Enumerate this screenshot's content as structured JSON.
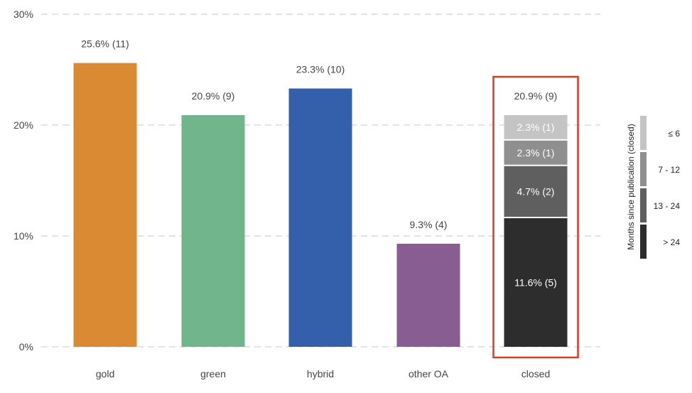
{
  "chart_data": {
    "type": "bar",
    "title": "",
    "xlabel": "",
    "ylabel": "",
    "ylim": [
      0,
      30
    ],
    "y_ticks": [
      0,
      10,
      20,
      30
    ],
    "y_tick_labels": [
      "0%",
      "10%",
      "20%",
      "30%"
    ],
    "grid": "horizontal dashed",
    "categories": [
      "gold",
      "green",
      "hybrid",
      "other OA",
      "closed"
    ],
    "bars": [
      {
        "category": "gold",
        "value": 25.6,
        "label": "25.6% (11)",
        "color": "#db8a34"
      },
      {
        "category": "green",
        "value": 20.9,
        "label": "20.9% (9)",
        "color": "#70b58c"
      },
      {
        "category": "hybrid",
        "value": 23.3,
        "label": "23.3% (10)",
        "color": "#3460ab"
      },
      {
        "category": "other OA",
        "value": 9.3,
        "label": "9.3% (4)",
        "color": "#885d92"
      },
      {
        "category": "closed",
        "value": 20.9,
        "label": "20.9% (9)",
        "highlighted": true,
        "highlight_color": "#d93a27",
        "segments": [
          {
            "group": "> 24",
            "value": 11.6,
            "label": "11.6% (5)",
            "color": "#2d2d2d"
          },
          {
            "group": "13 - 24",
            "value": 4.7,
            "label": "4.7% (2)",
            "color": "#5f5f5f"
          },
          {
            "group": "7 - 12",
            "value": 2.3,
            "label": "2.3% (1)",
            "color": "#8f8f8f"
          },
          {
            "group": "≤ 6",
            "value": 2.3,
            "label": "2.3% (1)",
            "color": "#c4c4c4"
          }
        ]
      }
    ],
    "legend": {
      "title": "Months since publication (closed)",
      "placement": "right",
      "items": [
        {
          "label": "≤ 6",
          "color": "#c4c4c4"
        },
        {
          "label": "7 - 12",
          "color": "#8f8f8f"
        },
        {
          "label": "13 - 24",
          "color": "#5f5f5f"
        },
        {
          "label": "> 24",
          "color": "#2d2d2d"
        }
      ]
    }
  }
}
